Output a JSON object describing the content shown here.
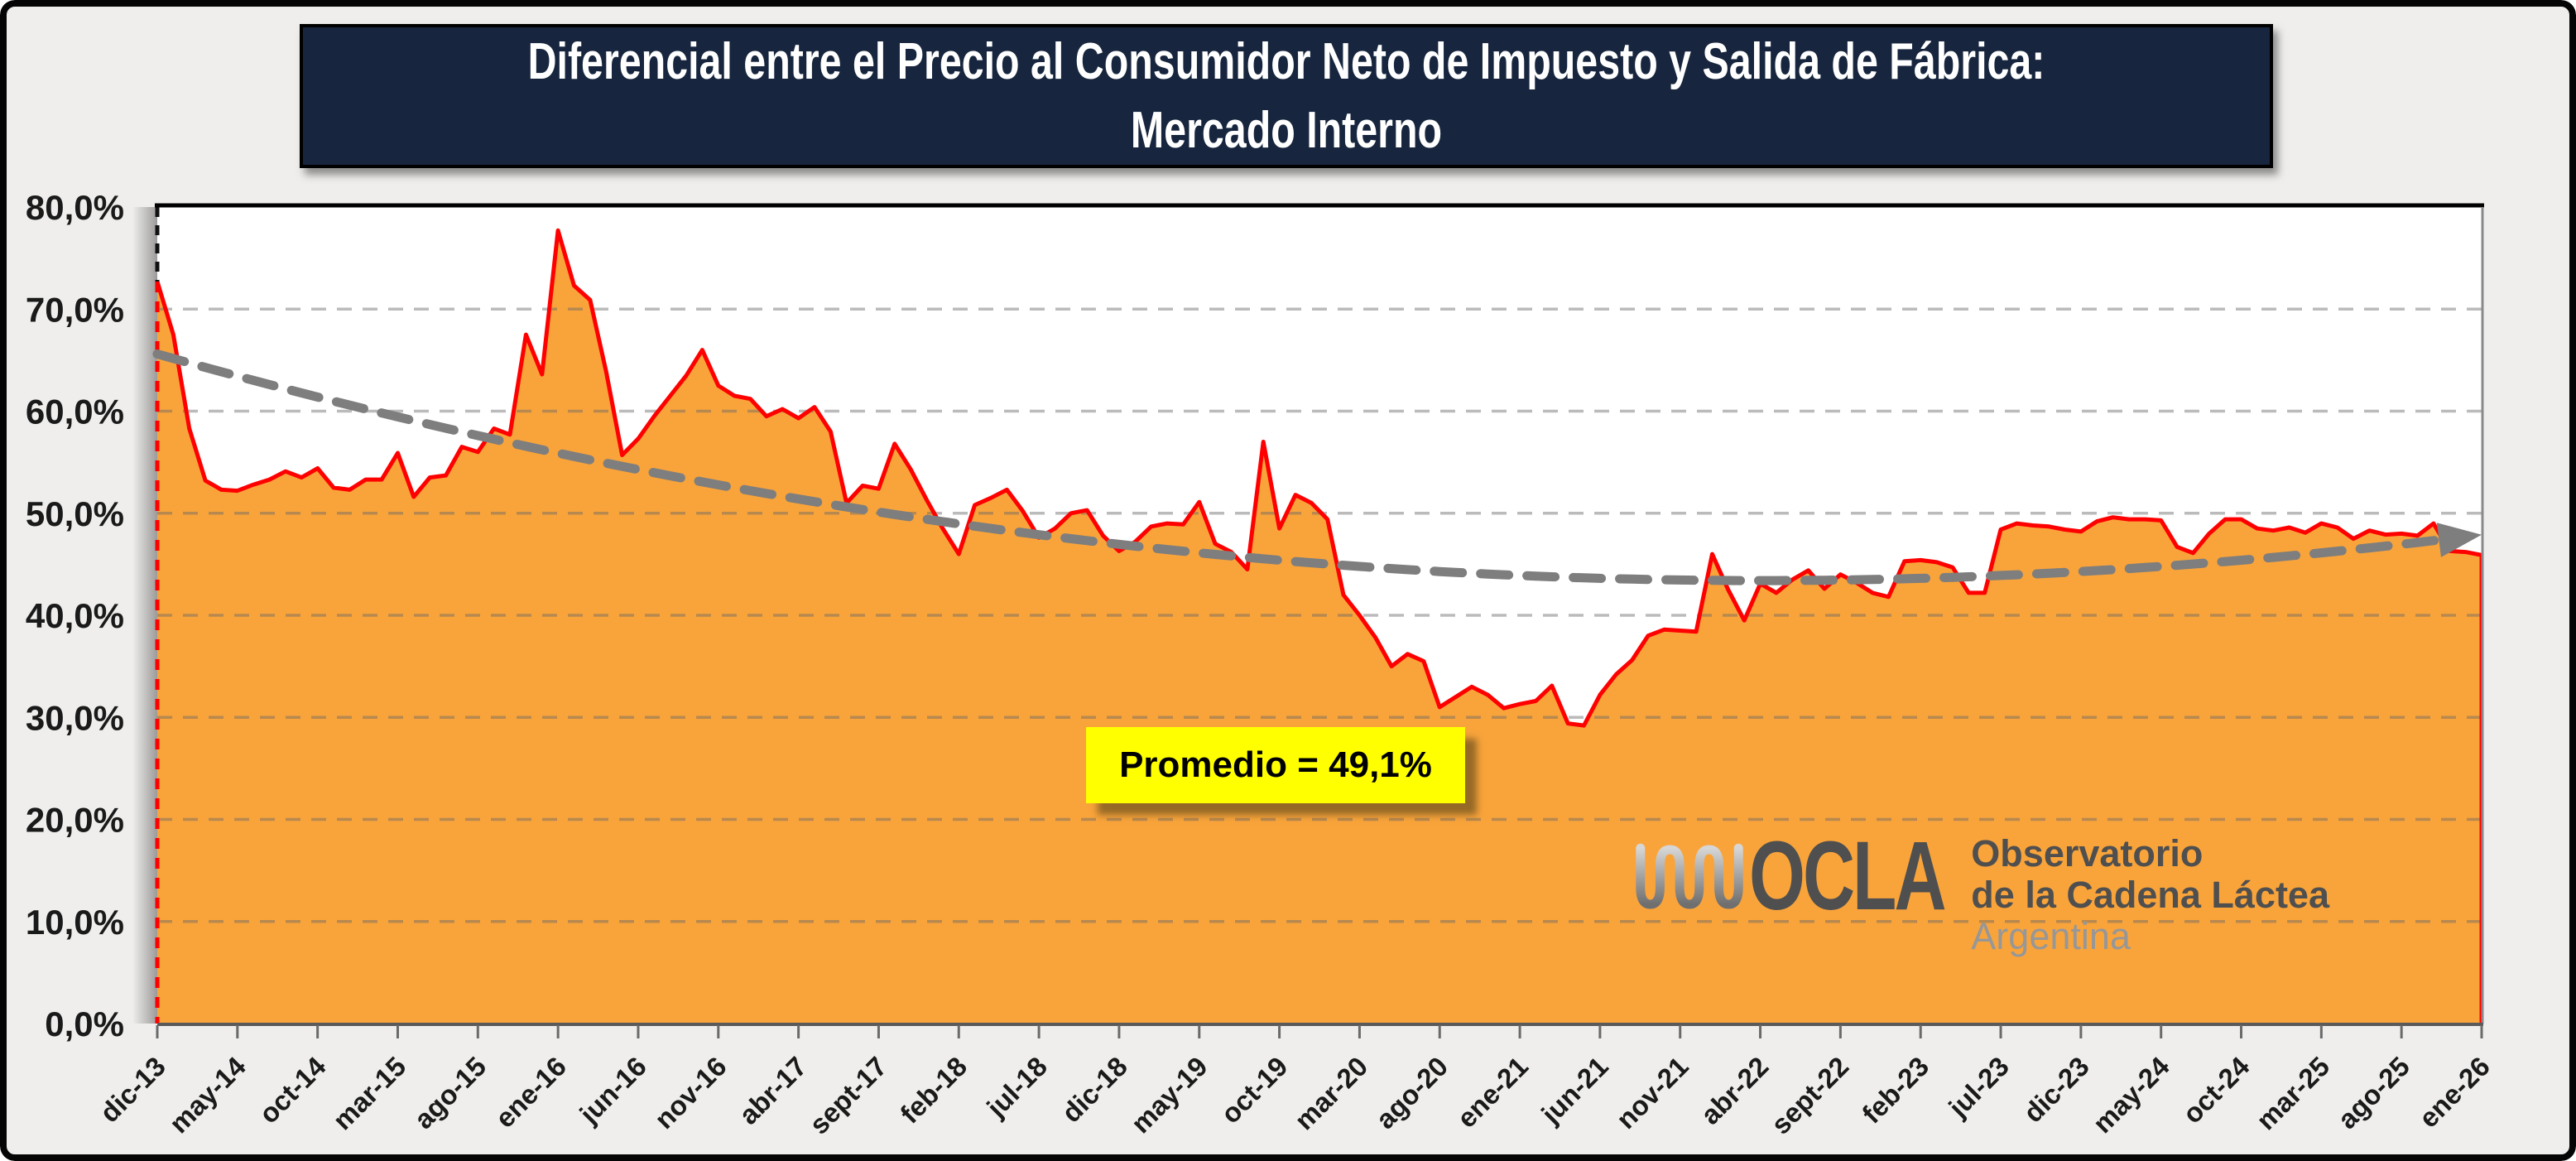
{
  "window": {
    "background": "#efeeec",
    "border_color": "#050505"
  },
  "title": {
    "text": "Diferencial entre el Precio al Consumidor Neto de Impuesto y Salida de Fábrica: Mercado Interno",
    "background": "#17263e",
    "color": "#ffffff"
  },
  "annotation": {
    "text": "Promedio = 49,1%",
    "background": "#ffff00",
    "color": "#000000"
  },
  "logo": {
    "brand": "OCLA",
    "line1": "Observatorio",
    "line2": "de la Cadena Láctea",
    "line3": "Argentina",
    "brand_color": "#4f4f4f",
    "muted_color": "#979797",
    "wave_icon": "milk-wave"
  },
  "y_axis": {
    "labels": [
      "80,0%",
      "70,0%",
      "60,0%",
      "50,0%",
      "40,0%",
      "30,0%",
      "20,0%",
      "10,0%",
      "0,0%"
    ],
    "min": 0,
    "max": 80,
    "step": 10,
    "unit": "%"
  },
  "chart_data": {
    "type": "area",
    "title": "Diferencial entre el Precio al Consumidor Neto de Impuesto y Salida de Fábrica: Mercado Interno",
    "series_name": "Diferencial consumidor neto de impuesto vs salida de fábrica (%)",
    "unit": "%",
    "ylim": [
      0,
      80
    ],
    "grid": "horizontal-dashed",
    "start_month": "dic-13",
    "end_month": "ene-26",
    "months_between_ticks": 5,
    "x_tick_labels": [
      "dic-13",
      "may-14",
      "oct-14",
      "mar-15",
      "ago-15",
      "ene-16",
      "jun-16",
      "nov-16",
      "abr-17",
      "sept-17",
      "feb-18",
      "jul-18",
      "dic-18",
      "may-19",
      "oct-19",
      "mar-20",
      "ago-20",
      "ene-21",
      "jun-21",
      "nov-21",
      "abr-22",
      "sept-22",
      "feb-23",
      "jul-23",
      "dic-23",
      "may-24",
      "oct-24",
      "mar-25",
      "ago-25",
      "ene-26"
    ],
    "values": [
      72.7,
      67.5,
      58.3,
      53.2,
      52.3,
      52.2,
      52.8,
      53.3,
      54.1,
      53.5,
      54.4,
      52.5,
      52.3,
      53.3,
      53.3,
      55.9,
      51.6,
      53.5,
      53.7,
      56.5,
      56.0,
      58.3,
      57.7,
      67.5,
      63.6,
      77.7,
      72.3,
      70.9,
      63.9,
      55.7,
      57.3,
      59.5,
      61.5,
      63.5,
      66.0,
      62.5,
      61.5,
      61.2,
      59.5,
      60.2,
      59.3,
      60.4,
      58.0,
      51.0,
      52.7,
      52.4,
      56.8,
      54.3,
      51.3,
      48.5,
      46.0,
      50.8,
      51.5,
      52.3,
      50.2,
      47.6,
      48.5,
      50.0,
      50.3,
      47.8,
      46.3,
      47.2,
      48.7,
      49.0,
      48.9,
      51.1,
      47.0,
      46.2,
      44.5,
      57.0,
      48.5,
      51.8,
      51.0,
      49.4,
      42.0,
      40.0,
      37.8,
      35.0,
      36.2,
      35.5,
      31.0,
      32.0,
      33.0,
      32.2,
      30.9,
      31.3,
      31.6,
      33.1,
      29.4,
      29.2,
      32.2,
      34.2,
      35.6,
      38.0,
      38.6,
      38.5,
      38.4,
      46.0,
      42.5,
      39.5,
      43.1,
      42.2,
      43.5,
      44.4,
      42.6,
      44.0,
      43.2,
      42.2,
      41.8,
      45.3,
      45.4,
      45.2,
      44.7,
      42.2,
      42.2,
      48.4,
      49.0,
      48.8,
      48.7,
      48.4,
      48.2,
      49.2,
      49.6,
      49.4,
      49.4,
      49.3,
      46.7,
      46.1,
      48.0,
      49.4,
      49.4,
      48.5,
      48.3,
      48.6,
      48.1,
      49.0,
      48.6,
      47.5,
      48.3,
      47.9,
      48.0,
      47.8,
      49.0,
      46.3,
      46.2,
      45.9
    ],
    "average": 49.1,
    "trend": {
      "type": "quadratic",
      "base": 43.4,
      "vertex_month_index": 100,
      "curvature": 0.00222,
      "start_value": 65.6,
      "end_value": 47.9,
      "style": "dashed-with-arrow"
    },
    "colors": {
      "fill": "#f9a43b",
      "line": "#ff0000",
      "trend": "#7e7e7e",
      "gridline": "#c7c7c7",
      "plot_background": "#ffffff",
      "axis_text": "#1a1a1a",
      "axis_line": "#5a5a5a"
    }
  }
}
